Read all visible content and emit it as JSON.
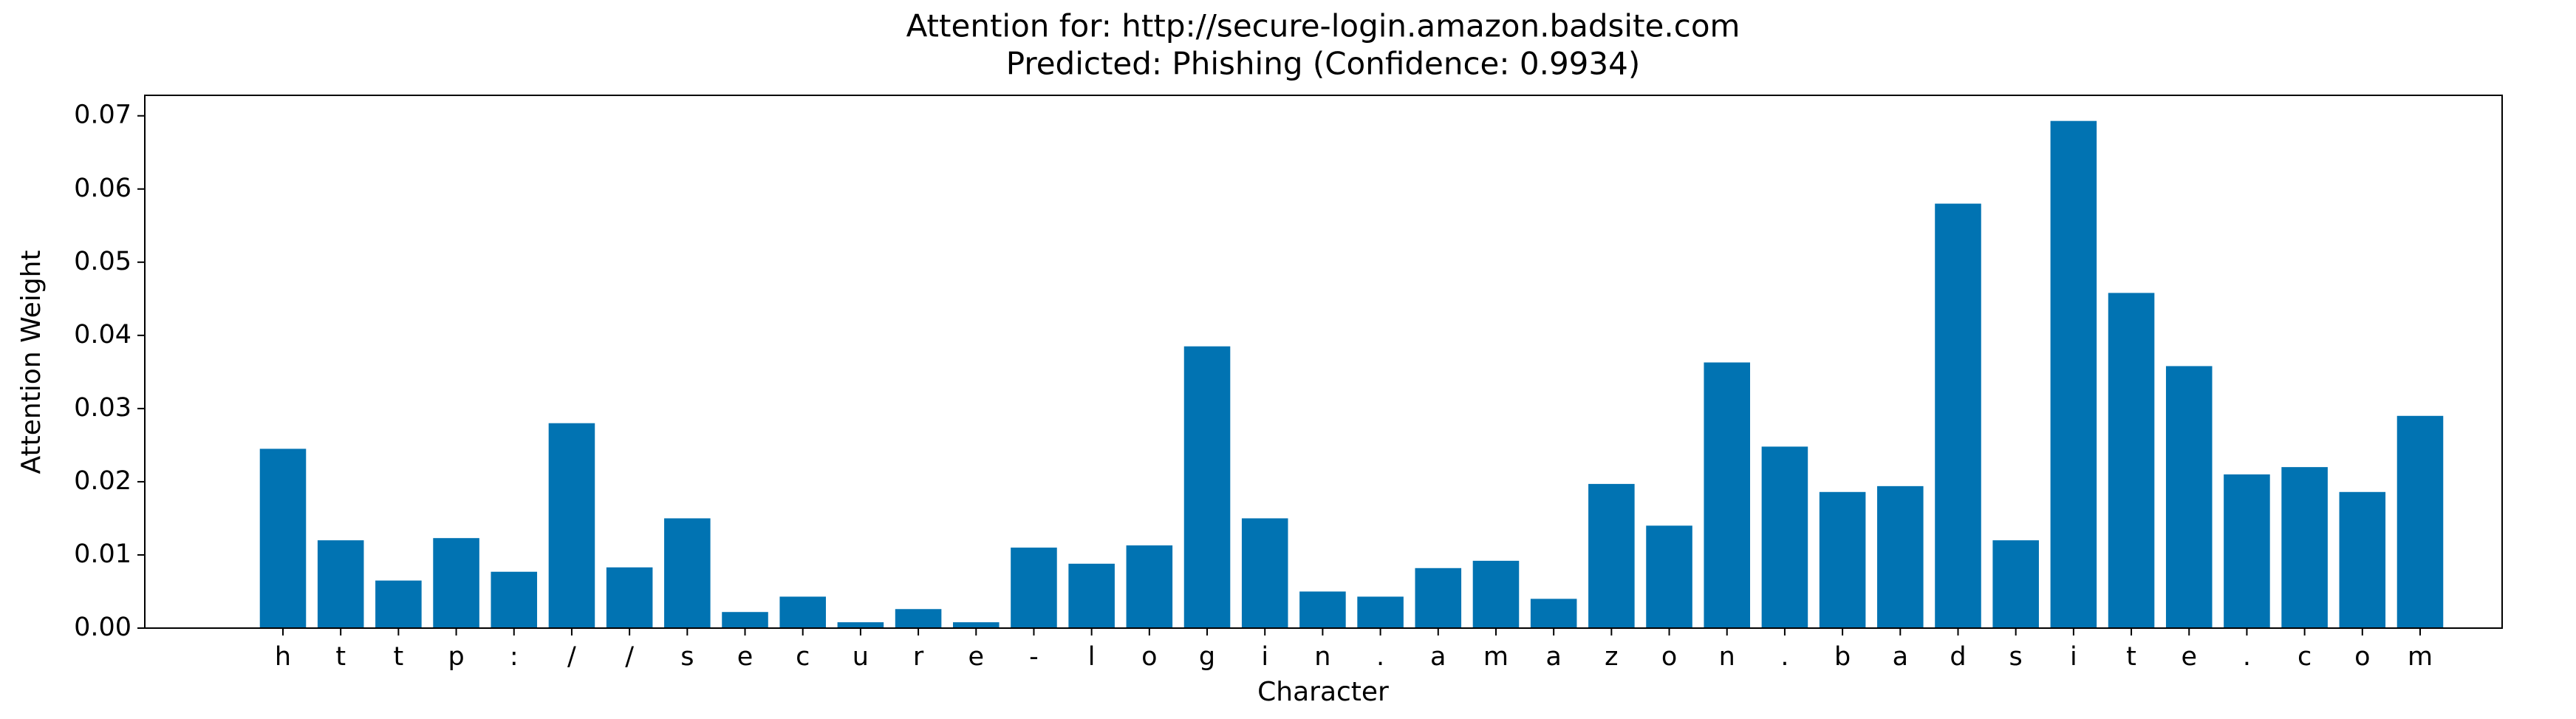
{
  "chart_data": {
    "type": "bar",
    "title": "Attention for: http://secure-login.amazon.badsite.com",
    "subtitle": "Predicted: Phishing (Confidence: 0.9934)",
    "x_label": "Character",
    "y_label": "Attention Weight",
    "categories": [
      "h",
      "t",
      "t",
      "p",
      ":",
      "/",
      "/",
      "s",
      "e",
      "c",
      "u",
      "r",
      "e",
      "-",
      "l",
      "o",
      "g",
      "i",
      "n",
      ".",
      "a",
      "m",
      "a",
      "z",
      "o",
      "n",
      ".",
      "b",
      "a",
      "d",
      "s",
      "i",
      "t",
      "e",
      ".",
      "c",
      "o",
      "m"
    ],
    "values": [
      0.0245,
      0.012,
      0.0065,
      0.0123,
      0.0077,
      0.028,
      0.0083,
      0.015,
      0.0022,
      0.0043,
      0.0008,
      0.0026,
      0.0008,
      0.011,
      0.0088,
      0.0113,
      0.0385,
      0.015,
      0.005,
      0.0043,
      0.0082,
      0.0092,
      0.004,
      0.0197,
      0.014,
      0.0363,
      0.0248,
      0.0186,
      0.0194,
      0.058,
      0.012,
      0.0693,
      0.0458,
      0.0358,
      0.021,
      0.022,
      0.0186,
      0.029
    ],
    "color": "#0173b2",
    "ylim": [
      0,
      0.0728
    ],
    "yticks": [
      {
        "value": 0,
        "label": "0.00"
      },
      {
        "value": 0.01,
        "label": "0.01"
      },
      {
        "value": 0.02,
        "label": "0.02"
      },
      {
        "value": 0.03,
        "label": "0.03"
      },
      {
        "value": 0.04,
        "label": "0.04"
      },
      {
        "value": 0.05,
        "label": "0.05"
      },
      {
        "value": 0.06,
        "label": "0.06"
      },
      {
        "value": 0.07,
        "label": "0.07"
      }
    ],
    "grid": false
  }
}
